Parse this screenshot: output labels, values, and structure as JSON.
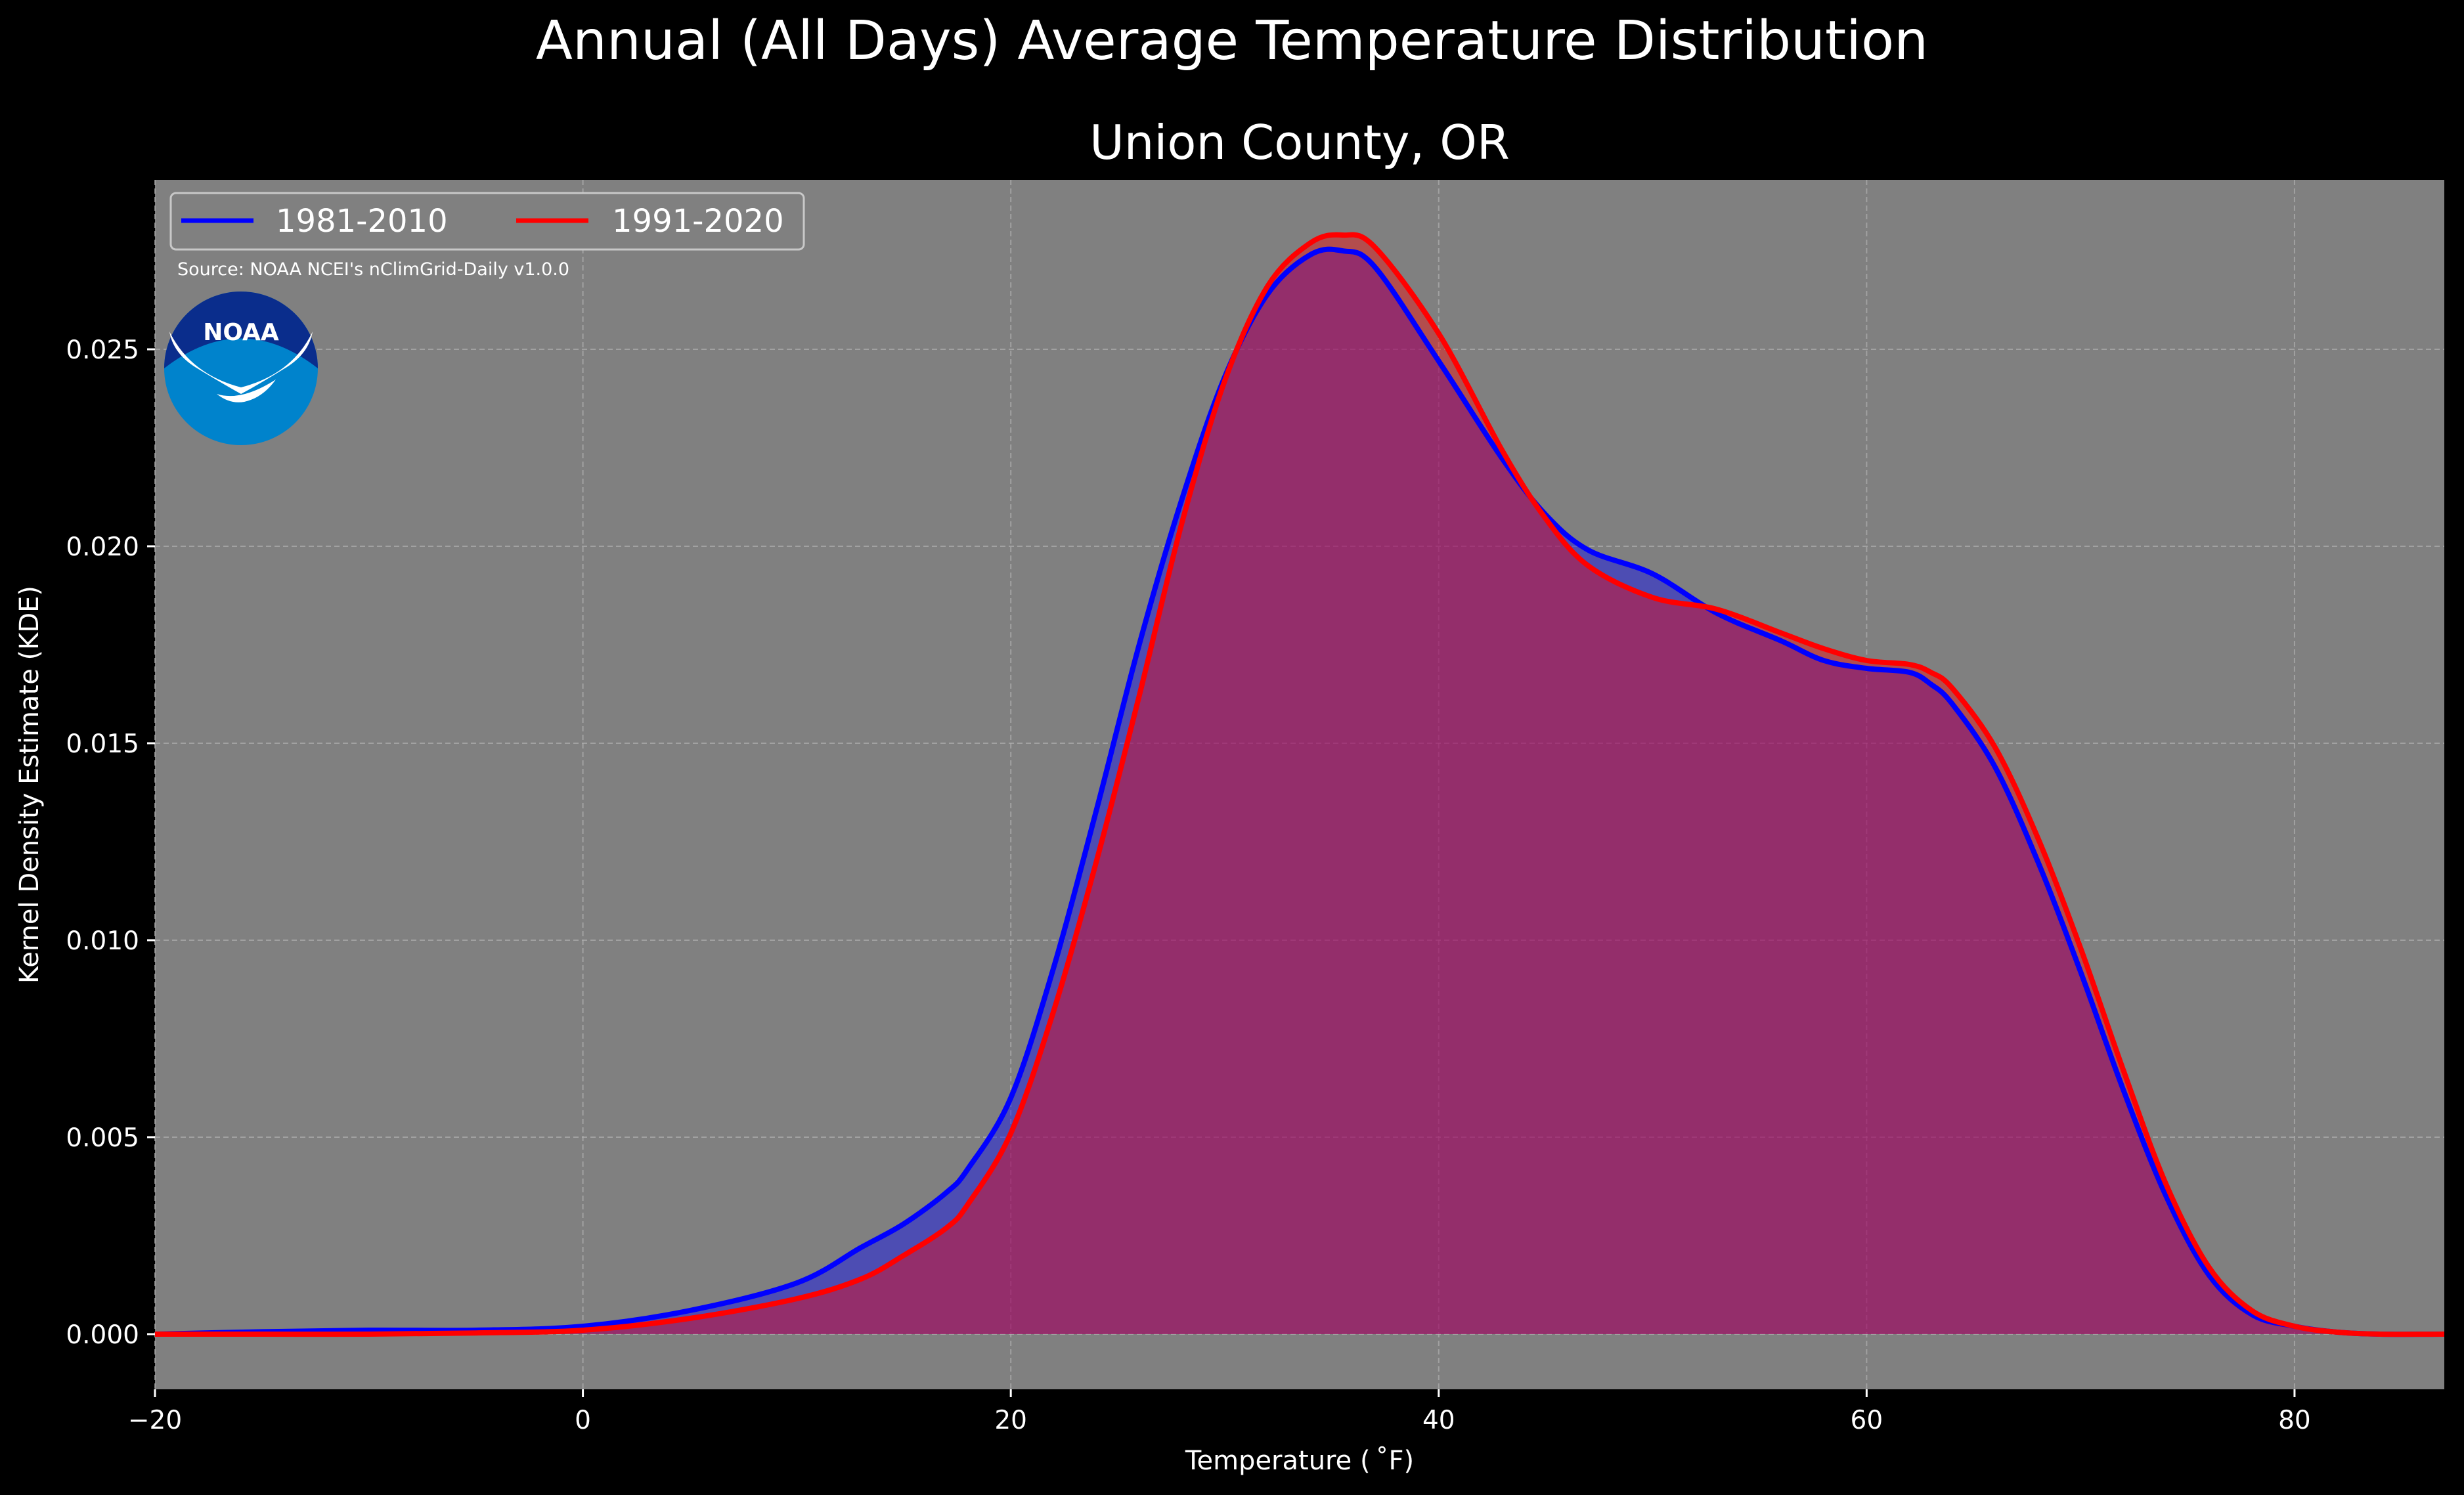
{
  "chart_data": {
    "type": "area",
    "title": "Annual (All Days) Average Temperature Distribution",
    "subtitle": "Union County, OR",
    "xlabel": "Temperature ($^\\circ$F)",
    "xlabel_display": "Temperature ( ˚F)",
    "ylabel": "Kernel Density Estimate (KDE)",
    "xlim": [
      -20,
      87
    ],
    "ylim": [
      -0.0014,
      0.0293
    ],
    "xticks": [
      -20,
      0,
      20,
      40,
      60,
      80
    ],
    "xtick_labels": [
      "−20",
      "0",
      "20",
      "40",
      "60",
      "80"
    ],
    "yticks": [
      0.0,
      0.005,
      0.01,
      0.015,
      0.02,
      0.025
    ],
    "ytick_labels": [
      "0.000",
      "0.005",
      "0.010",
      "0.015",
      "0.020",
      "0.025"
    ],
    "grid": true,
    "legend_placement": "top-left",
    "source_note": "Source: NOAA NCEI's nClimGrid-Daily v1.0.0",
    "logo_text": "NOAA",
    "series": [
      {
        "name": "1981-2010",
        "color": "#0000ff",
        "fill_color": "#0000ff",
        "x": [
          -20,
          -15,
          -10,
          -5,
          0,
          5,
          10,
          13,
          15,
          17,
          18,
          20,
          22,
          24,
          26,
          28,
          30,
          32,
          34,
          35.5,
          37,
          40,
          43,
          45,
          47,
          50,
          53,
          56,
          58,
          60,
          62,
          63,
          64,
          66,
          68,
          70,
          72,
          74,
          76,
          78,
          80,
          82,
          84,
          87
        ],
        "y": [
          0.0,
          6e-05,
          0.0001,
          0.0001,
          0.0002,
          0.0006,
          0.0013,
          0.0022,
          0.0028,
          0.0036,
          0.0042,
          0.006,
          0.0093,
          0.0133,
          0.0175,
          0.0212,
          0.0243,
          0.0264,
          0.0274,
          0.0275,
          0.0271,
          0.0247,
          0.0222,
          0.0208,
          0.0199,
          0.0193,
          0.0183,
          0.0176,
          0.0171,
          0.0169,
          0.0168,
          0.0165,
          0.016,
          0.0144,
          0.012,
          0.0092,
          0.0062,
          0.0035,
          0.0015,
          0.0005,
          0.0002,
          5e-05,
          0.0,
          0.0
        ]
      },
      {
        "name": "1991-2020",
        "color": "#ff0000",
        "fill_color": "#ff0000",
        "x": [
          -20,
          -15,
          -10,
          -5,
          0,
          5,
          10,
          13,
          15,
          17,
          18,
          20,
          22,
          24,
          26,
          28,
          30,
          32,
          34,
          35.5,
          37,
          40,
          43,
          45,
          47,
          50,
          53,
          56,
          58,
          60,
          62,
          63,
          64,
          66,
          68,
          70,
          72,
          74,
          76,
          78,
          80,
          82,
          84,
          87
        ],
        "y": [
          0.0,
          0.0,
          0.0,
          3e-05,
          0.0001,
          0.0004,
          0.0009,
          0.0014,
          0.002,
          0.0027,
          0.0033,
          0.0051,
          0.0082,
          0.012,
          0.0162,
          0.0206,
          0.0242,
          0.0266,
          0.0277,
          0.0279,
          0.0276,
          0.0254,
          0.0224,
          0.0207,
          0.0195,
          0.0187,
          0.0184,
          0.0178,
          0.0174,
          0.0171,
          0.017,
          0.0168,
          0.0164,
          0.0149,
          0.0126,
          0.0098,
          0.0067,
          0.0038,
          0.0017,
          0.0006,
          0.0002,
          5e-05,
          0.0,
          0.0
        ]
      }
    ]
  }
}
